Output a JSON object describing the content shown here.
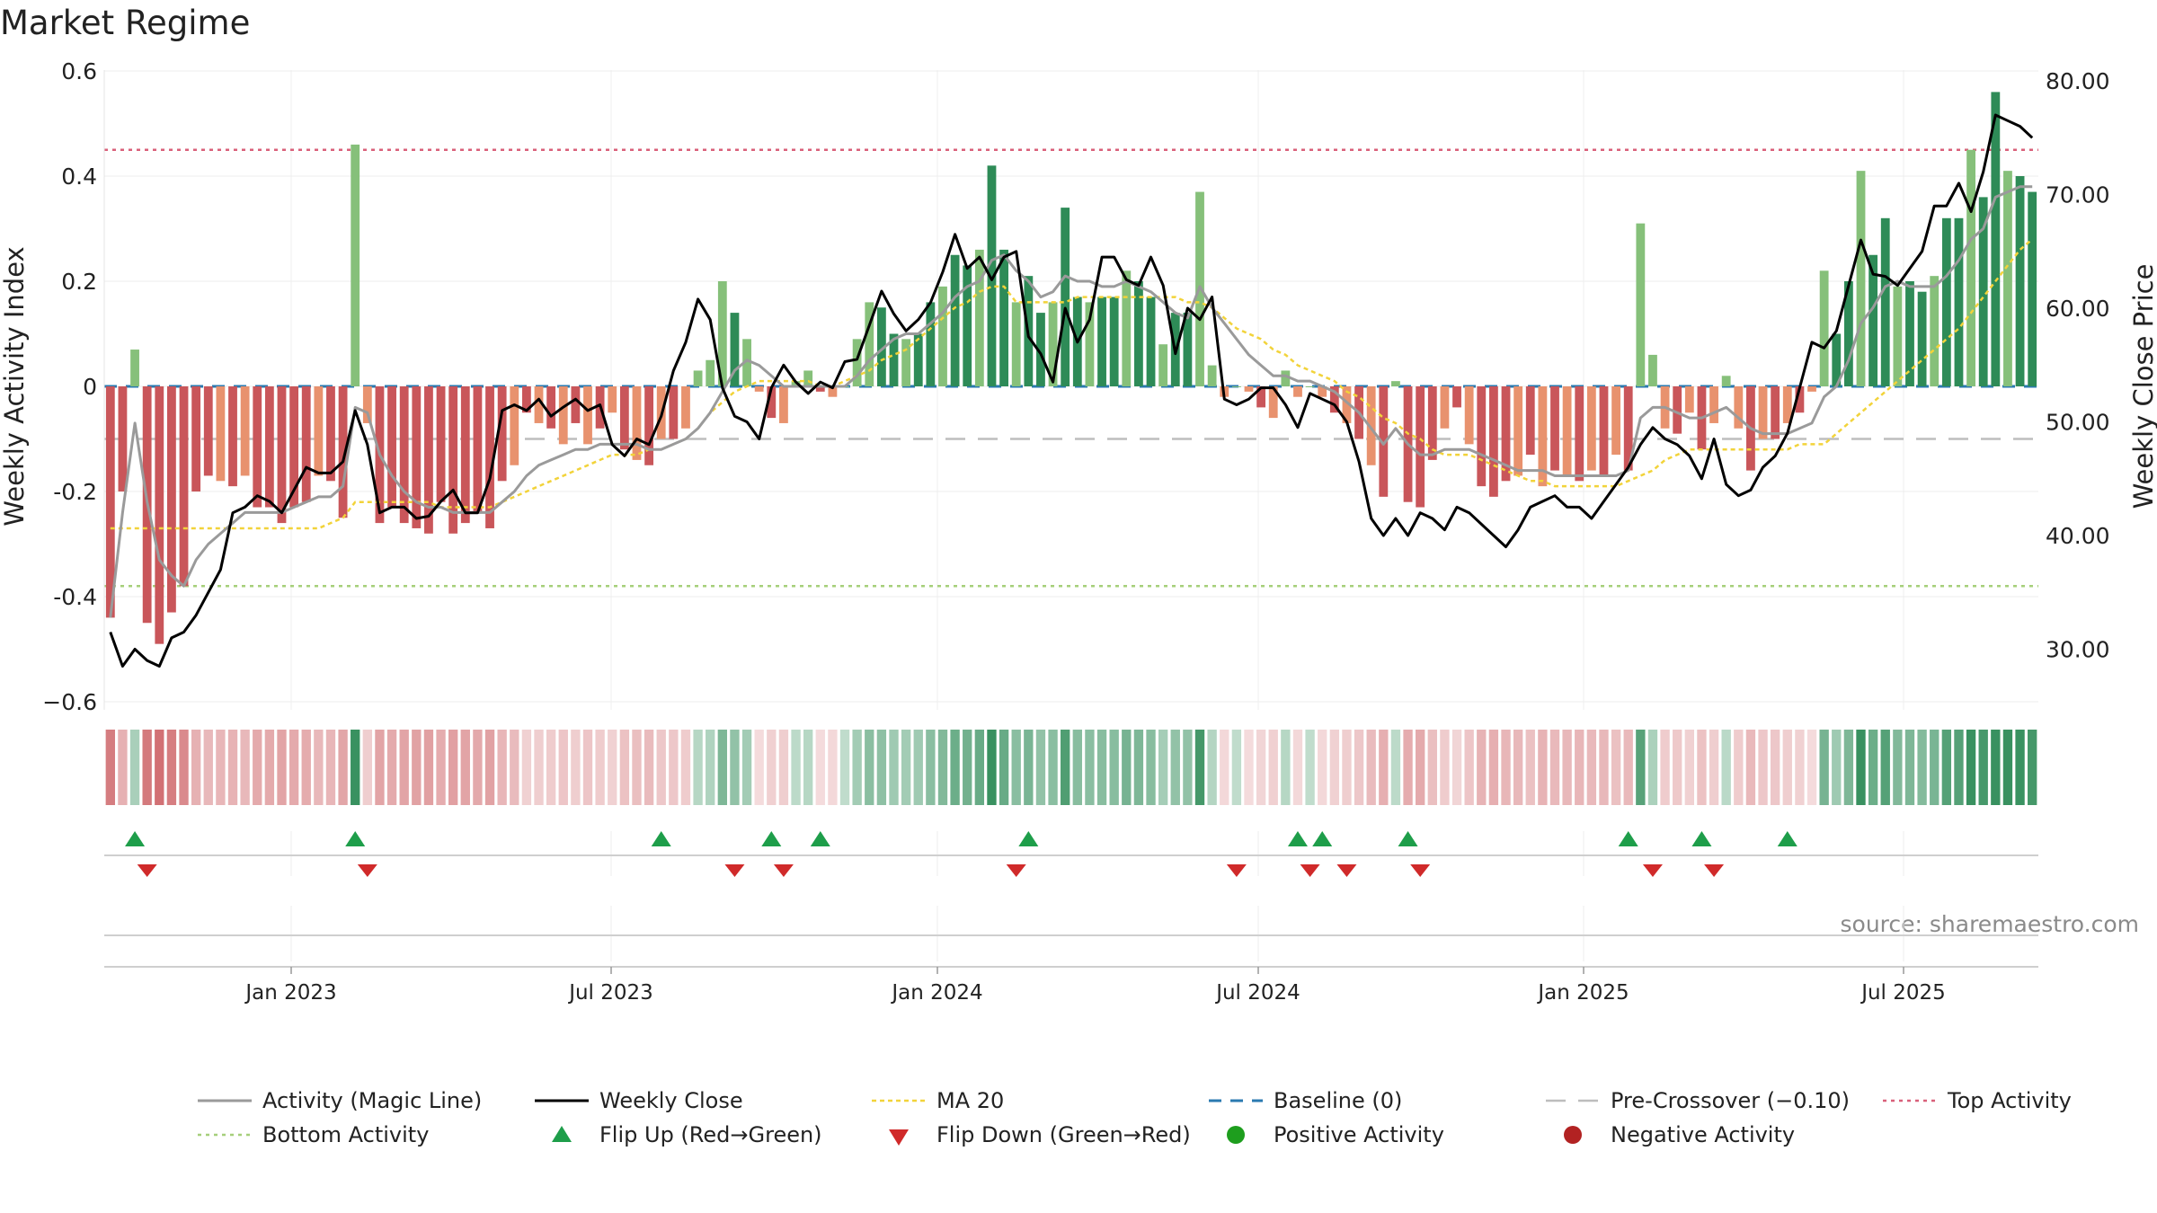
{
  "title": "Market Regime",
  "source": "source: sharemaestro.com",
  "colors": {
    "pos_dark": "#2e8b57",
    "pos_light": "#86c07a",
    "neg_dark": "#c9565a",
    "neg_light": "#e8926e",
    "magic": "#9a9a9a",
    "close": "#000000",
    "ma20": "#f2d33a",
    "baseline": "#2a7ab0",
    "precross": "#bdbdbd",
    "top": "#d9607a",
    "bottom": "#a6cf7a",
    "flip_up": "#1e9e4a",
    "flip_down": "#d02a2a",
    "pos_activity": "#1e9e1e",
    "neg_activity": "#b22222"
  },
  "chart_data": {
    "type": "bar",
    "title": "Market Regime",
    "ylabel": "Weekly Activity Index",
    "y2label": "Weekly Close Price",
    "ylim": [
      -0.6,
      0.6
    ],
    "y2lim": [
      25,
      80
    ],
    "y_ticks": [
      "0.6",
      "0.4",
      "0.2",
      "0",
      "-0.2",
      "-0.4",
      "−0.6"
    ],
    "y2_ticks": [
      "80.00",
      "70.00",
      "60.00",
      "50.00",
      "40.00",
      "30.00"
    ],
    "x_ticks": [
      "Jan 2023",
      "Jul 2023",
      "Jan 2024",
      "Jul 2024",
      "Jan 2025",
      "Jul 2025"
    ],
    "top_activity": 0.45,
    "bottom_activity": -0.38,
    "pre_crossover": -0.1,
    "activity": [
      -0.44,
      -0.2,
      0.07,
      -0.45,
      -0.49,
      -0.43,
      -0.38,
      -0.2,
      -0.17,
      -0.18,
      -0.19,
      -0.17,
      -0.23,
      -0.23,
      -0.26,
      -0.23,
      -0.22,
      -0.17,
      -0.18,
      -0.25,
      0.46,
      -0.07,
      -0.26,
      -0.23,
      -0.26,
      -0.27,
      -0.28,
      -0.22,
      -0.28,
      -0.26,
      -0.24,
      -0.27,
      -0.18,
      -0.15,
      -0.05,
      -0.07,
      -0.08,
      -0.11,
      -0.07,
      -0.11,
      -0.08,
      -0.05,
      -0.12,
      -0.14,
      -0.15,
      -0.1,
      -0.1,
      -0.08,
      0.03,
      0.05,
      0.2,
      0.14,
      0.09,
      -0.01,
      -0.06,
      -0.07,
      0.01,
      0.03,
      -0.01,
      -0.02,
      0.0,
      0.09,
      0.16,
      0.15,
      0.1,
      0.09,
      0.1,
      0.16,
      0.19,
      0.25,
      0.23,
      0.26,
      0.42,
      0.26,
      0.16,
      0.21,
      0.14,
      0.16,
      0.34,
      0.17,
      0.16,
      0.17,
      0.17,
      0.22,
      0.2,
      0.17,
      0.08,
      0.14,
      0.14,
      0.37,
      0.04,
      -0.02,
      0.0,
      -0.01,
      -0.04,
      -0.06,
      0.03,
      -0.02,
      0.0,
      -0.02,
      -0.05,
      -0.07,
      -0.1,
      -0.15,
      -0.21,
      0.01,
      -0.22,
      -0.23,
      -0.14,
      -0.08,
      -0.04,
      -0.11,
      -0.19,
      -0.21,
      -0.18,
      -0.17,
      -0.13,
      -0.19,
      -0.16,
      -0.17,
      -0.18,
      -0.16,
      -0.17,
      -0.13,
      -0.16,
      0.31,
      0.06,
      -0.08,
      -0.09,
      -0.05,
      -0.12,
      -0.07,
      0.02,
      -0.08,
      -0.16,
      -0.1,
      -0.1,
      -0.07,
      -0.05,
      -0.01,
      0.22,
      0.1,
      0.2,
      0.41,
      0.25,
      0.32,
      0.19,
      0.2,
      0.18,
      0.21,
      0.32,
      0.32,
      0.45,
      0.36,
      0.56,
      0.41,
      0.4,
      0.37
    ],
    "weekly_close": [
      31.5,
      28.5,
      30,
      29,
      28.5,
      31,
      31.5,
      33,
      35,
      37,
      42,
      42.5,
      43.5,
      43,
      42,
      44,
      46,
      45.5,
      45.5,
      46.5,
      51,
      48,
      42,
      42.5,
      42.5,
      41.5,
      41.7,
      43,
      44,
      42,
      42,
      45,
      51,
      51.5,
      51,
      52,
      50.5,
      51.3,
      52,
      51,
      51.5,
      48,
      47,
      48.5,
      48,
      50.5,
      54.5,
      57,
      60.8,
      59,
      53,
      50.5,
      50,
      48.5,
      53,
      55,
      53.5,
      52.5,
      53.5,
      53,
      55.3,
      55.5,
      58.5,
      61.5,
      59.5,
      58,
      59,
      60.5,
      63.2,
      66.5,
      63.5,
      64.5,
      62.5,
      64.5,
      65,
      57.5,
      56,
      53.5,
      60,
      57,
      59,
      64.5,
      64.5,
      62.5,
      62,
      64.5,
      62,
      56,
      60,
      59,
      61,
      52,
      51.5,
      52,
      53,
      53,
      51.5,
      49.5,
      52.5,
      52,
      51.5,
      50,
      46.5,
      41.5,
      40,
      41.5,
      40,
      42,
      41.5,
      40.5,
      42.5,
      42,
      41,
      40,
      39,
      40.5,
      42.5,
      43,
      43.5,
      42.5,
      42.5,
      41.5,
      43,
      44.5,
      46,
      48,
      49.5,
      48.5,
      48,
      47,
      45,
      48.5,
      44.5,
      43.5,
      44,
      46,
      47,
      49,
      53,
      57,
      56.5,
      58,
      62,
      66,
      63,
      62.8,
      62,
      63.5,
      65,
      69,
      69,
      71,
      68.5,
      72,
      77,
      76.5,
      76,
      75
    ],
    "magic_line": [
      -0.44,
      -0.24,
      -0.07,
      -0.22,
      -0.33,
      -0.36,
      -0.38,
      -0.33,
      -0.3,
      -0.28,
      -0.26,
      -0.24,
      -0.24,
      -0.24,
      -0.24,
      -0.23,
      -0.22,
      -0.21,
      -0.21,
      -0.19,
      -0.04,
      -0.05,
      -0.13,
      -0.17,
      -0.2,
      -0.22,
      -0.23,
      -0.23,
      -0.24,
      -0.24,
      -0.24,
      -0.24,
      -0.22,
      -0.2,
      -0.17,
      -0.15,
      -0.14,
      -0.13,
      -0.12,
      -0.12,
      -0.11,
      -0.11,
      -0.11,
      -0.11,
      -0.12,
      -0.12,
      -0.11,
      -0.1,
      -0.08,
      -0.05,
      -0.01,
      0.03,
      0.05,
      0.04,
      0.02,
      0.0,
      0.0,
      0.0,
      0.0,
      0.0,
      0.0,
      0.02,
      0.05,
      0.07,
      0.09,
      0.1,
      0.1,
      0.12,
      0.14,
      0.17,
      0.19,
      0.2,
      0.24,
      0.25,
      0.22,
      0.2,
      0.17,
      0.18,
      0.21,
      0.2,
      0.2,
      0.19,
      0.19,
      0.2,
      0.19,
      0.18,
      0.16,
      0.14,
      0.13,
      0.19,
      0.15,
      0.12,
      0.09,
      0.06,
      0.04,
      0.02,
      0.02,
      0.01,
      0.01,
      0.0,
      -0.01,
      -0.03,
      -0.05,
      -0.08,
      -0.11,
      -0.08,
      -0.11,
      -0.13,
      -0.13,
      -0.12,
      -0.12,
      -0.12,
      -0.13,
      -0.14,
      -0.15,
      -0.16,
      -0.16,
      -0.16,
      -0.17,
      -0.17,
      -0.17,
      -0.17,
      -0.17,
      -0.17,
      -0.16,
      -0.06,
      -0.04,
      -0.04,
      -0.05,
      -0.06,
      -0.06,
      -0.05,
      -0.04,
      -0.06,
      -0.08,
      -0.09,
      -0.09,
      -0.09,
      -0.08,
      -0.07,
      -0.02,
      0.0,
      0.05,
      0.12,
      0.15,
      0.19,
      0.2,
      0.19,
      0.19,
      0.19,
      0.21,
      0.24,
      0.28,
      0.3,
      0.36,
      0.37,
      0.38,
      0.38
    ],
    "ma20": [
      -0.27,
      -0.27,
      -0.27,
      -0.27,
      -0.27,
      -0.27,
      -0.27,
      -0.27,
      -0.27,
      -0.27,
      -0.27,
      -0.27,
      -0.27,
      -0.27,
      -0.27,
      -0.27,
      -0.27,
      -0.27,
      -0.26,
      -0.25,
      -0.22,
      -0.22,
      -0.22,
      -0.22,
      -0.22,
      -0.22,
      -0.22,
      -0.23,
      -0.23,
      -0.23,
      -0.23,
      -0.23,
      -0.22,
      -0.21,
      -0.2,
      -0.19,
      -0.18,
      -0.17,
      -0.16,
      -0.15,
      -0.14,
      -0.13,
      -0.13,
      -0.13,
      -0.12,
      -0.12,
      -0.11,
      -0.1,
      -0.08,
      -0.05,
      -0.03,
      -0.01,
      0.0,
      0.01,
      0.01,
      0.01,
      0.01,
      0.01,
      0.0,
      0.0,
      0.01,
      0.02,
      0.03,
      0.05,
      0.06,
      0.07,
      0.09,
      0.11,
      0.13,
      0.15,
      0.16,
      0.18,
      0.19,
      0.19,
      0.16,
      0.16,
      0.16,
      0.16,
      0.16,
      0.17,
      0.17,
      0.17,
      0.17,
      0.17,
      0.17,
      0.17,
      0.17,
      0.17,
      0.16,
      0.16,
      0.15,
      0.13,
      0.11,
      0.1,
      0.09,
      0.07,
      0.06,
      0.04,
      0.03,
      0.02,
      0.01,
      -0.01,
      -0.02,
      -0.04,
      -0.06,
      -0.07,
      -0.09,
      -0.1,
      -0.12,
      -0.13,
      -0.13,
      -0.13,
      -0.14,
      -0.15,
      -0.16,
      -0.17,
      -0.18,
      -0.18,
      -0.19,
      -0.19,
      -0.19,
      -0.19,
      -0.19,
      -0.19,
      -0.18,
      -0.17,
      -0.16,
      -0.14,
      -0.13,
      -0.12,
      -0.12,
      -0.12,
      -0.12,
      -0.12,
      -0.12,
      -0.12,
      -0.12,
      -0.12,
      -0.11,
      -0.11,
      -0.11,
      -0.09,
      -0.07,
      -0.05,
      -0.03,
      -0.01,
      0.01,
      0.03,
      0.05,
      0.07,
      0.09,
      0.11,
      0.14,
      0.17,
      0.2,
      0.23,
      0.26,
      0.28
    ],
    "flip_up_index": [
      2,
      20,
      45,
      54,
      58,
      75,
      97,
      99,
      106,
      124,
      130,
      137
    ],
    "flip_down_index": [
      3,
      21,
      51,
      55,
      74,
      92,
      98,
      101,
      107,
      126,
      131
    ],
    "legend": {
      "placement": "bottom",
      "entries": [
        "Activity (Magic Line)",
        "Weekly Close",
        "MA 20",
        "Baseline (0)",
        "Pre-Crossover (−0.10)",
        "Top Activity",
        "Bottom Activity",
        "Flip Up (Red→Green)",
        "Flip Down (Green→Red)",
        "Positive Activity",
        "Negative Activity"
      ]
    },
    "grid": true
  }
}
